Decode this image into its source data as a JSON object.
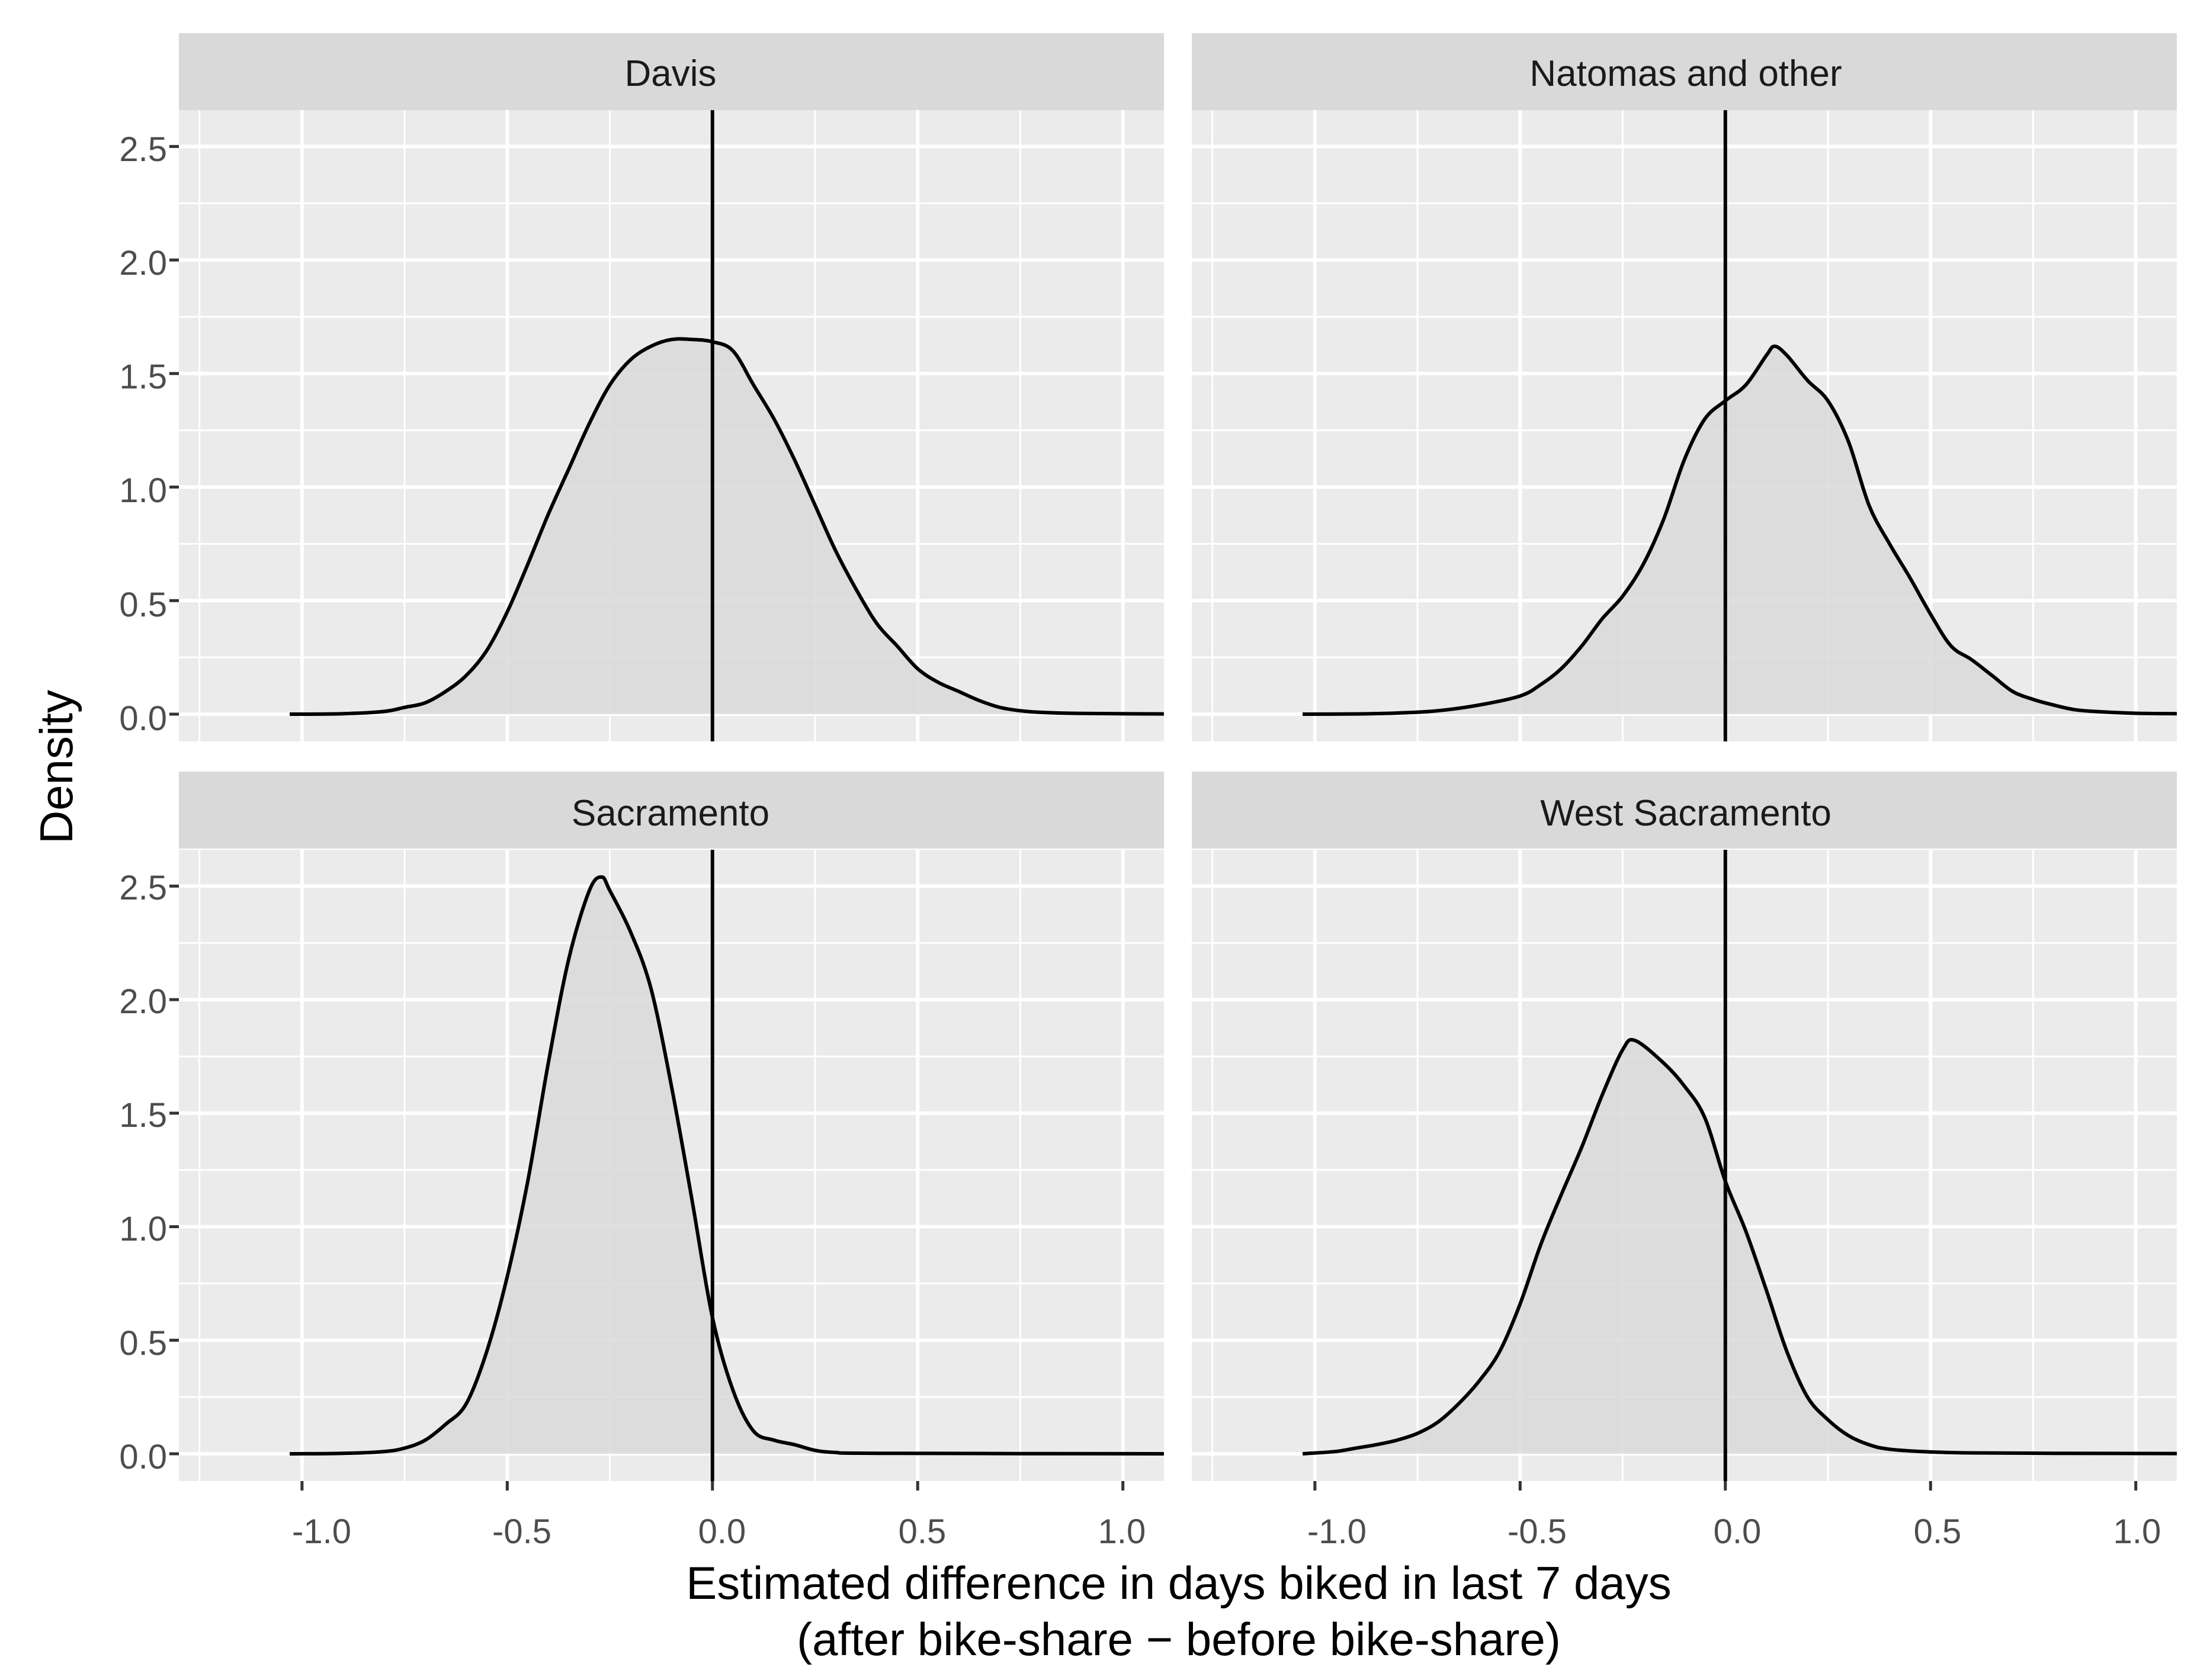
{
  "chart_data": {
    "type": "density",
    "xlabel": "Estimated difference in days biked in last 7 days",
    "xlabel_line2": "(after bike-share − before bike-share)",
    "ylabel": "Density",
    "xlim": [
      -1.3,
      1.1
    ],
    "ylim": [
      -0.12,
      2.66
    ],
    "x_ticks": [
      -1.0,
      -0.5,
      0.0,
      0.5,
      1.0
    ],
    "x_tick_labels": [
      "-1.0",
      "-0.5",
      "0.0",
      "0.5",
      "1.0"
    ],
    "y_ticks": [
      0.0,
      0.5,
      1.0,
      1.5,
      2.0,
      2.5
    ],
    "y_tick_labels": [
      "0.0",
      "0.5",
      "1.0",
      "1.5",
      "2.0",
      "2.5"
    ],
    "reference_line_x": 0.0,
    "fill_color": "#d9d9d9",
    "panel_bg": "#ebebeb",
    "strip_bg": "#d9d9d9",
    "grid_color": "#ffffff",
    "line_color": "#000000",
    "panels": [
      {
        "title": "Davis",
        "points": [
          [
            -1.03,
            0.0
          ],
          [
            -0.9,
            0.002
          ],
          [
            -0.8,
            0.012
          ],
          [
            -0.75,
            0.03
          ],
          [
            -0.7,
            0.05
          ],
          [
            -0.65,
            0.1
          ],
          [
            -0.6,
            0.17
          ],
          [
            -0.55,
            0.28
          ],
          [
            -0.5,
            0.45
          ],
          [
            -0.45,
            0.66
          ],
          [
            -0.4,
            0.88
          ],
          [
            -0.35,
            1.08
          ],
          [
            -0.3,
            1.28
          ],
          [
            -0.25,
            1.45
          ],
          [
            -0.2,
            1.56
          ],
          [
            -0.15,
            1.62
          ],
          [
            -0.1,
            1.65
          ],
          [
            -0.05,
            1.65
          ],
          [
            0.0,
            1.64
          ],
          [
            0.05,
            1.6
          ],
          [
            0.1,
            1.45
          ],
          [
            0.15,
            1.3
          ],
          [
            0.2,
            1.12
          ],
          [
            0.25,
            0.92
          ],
          [
            0.3,
            0.72
          ],
          [
            0.35,
            0.55
          ],
          [
            0.4,
            0.4
          ],
          [
            0.45,
            0.3
          ],
          [
            0.5,
            0.2
          ],
          [
            0.55,
            0.14
          ],
          [
            0.6,
            0.1
          ],
          [
            0.65,
            0.06
          ],
          [
            0.7,
            0.03
          ],
          [
            0.75,
            0.015
          ],
          [
            0.8,
            0.008
          ],
          [
            0.9,
            0.003
          ],
          [
            1.1,
            0.001
          ]
        ]
      },
      {
        "title": "Natomas and other",
        "points": [
          [
            -1.03,
            0.0
          ],
          [
            -0.9,
            0.001
          ],
          [
            -0.8,
            0.005
          ],
          [
            -0.7,
            0.015
          ],
          [
            -0.6,
            0.04
          ],
          [
            -0.5,
            0.08
          ],
          [
            -0.45,
            0.13
          ],
          [
            -0.4,
            0.2
          ],
          [
            -0.35,
            0.3
          ],
          [
            -0.3,
            0.42
          ],
          [
            -0.25,
            0.52
          ],
          [
            -0.2,
            0.66
          ],
          [
            -0.15,
            0.86
          ],
          [
            -0.1,
            1.12
          ],
          [
            -0.05,
            1.3
          ],
          [
            0.0,
            1.38
          ],
          [
            0.05,
            1.45
          ],
          [
            0.1,
            1.58
          ],
          [
            0.12,
            1.62
          ],
          [
            0.15,
            1.58
          ],
          [
            0.2,
            1.47
          ],
          [
            0.25,
            1.38
          ],
          [
            0.3,
            1.2
          ],
          [
            0.35,
            0.92
          ],
          [
            0.4,
            0.75
          ],
          [
            0.45,
            0.6
          ],
          [
            0.5,
            0.44
          ],
          [
            0.55,
            0.3
          ],
          [
            0.6,
            0.24
          ],
          [
            0.65,
            0.17
          ],
          [
            0.7,
            0.1
          ],
          [
            0.75,
            0.065
          ],
          [
            0.8,
            0.04
          ],
          [
            0.85,
            0.02
          ],
          [
            0.9,
            0.012
          ],
          [
            1.0,
            0.004
          ],
          [
            1.1,
            0.002
          ]
        ]
      },
      {
        "title": "Sacramento",
        "points": [
          [
            -1.03,
            0.0
          ],
          [
            -0.9,
            0.002
          ],
          [
            -0.8,
            0.01
          ],
          [
            -0.75,
            0.025
          ],
          [
            -0.7,
            0.06
          ],
          [
            -0.65,
            0.13
          ],
          [
            -0.6,
            0.22
          ],
          [
            -0.55,
            0.45
          ],
          [
            -0.5,
            0.78
          ],
          [
            -0.45,
            1.2
          ],
          [
            -0.4,
            1.72
          ],
          [
            -0.35,
            2.18
          ],
          [
            -0.3,
            2.48
          ],
          [
            -0.27,
            2.54
          ],
          [
            -0.25,
            2.48
          ],
          [
            -0.2,
            2.3
          ],
          [
            -0.15,
            2.05
          ],
          [
            -0.1,
            1.62
          ],
          [
            -0.05,
            1.12
          ],
          [
            0.0,
            0.6
          ],
          [
            0.05,
            0.28
          ],
          [
            0.1,
            0.1
          ],
          [
            0.15,
            0.06
          ],
          [
            0.2,
            0.04
          ],
          [
            0.25,
            0.015
          ],
          [
            0.3,
            0.006
          ],
          [
            0.4,
            0.002
          ],
          [
            1.1,
            0.0
          ]
        ]
      },
      {
        "title": "West Sacramento",
        "points": [
          [
            -1.03,
            0.0
          ],
          [
            -0.95,
            0.01
          ],
          [
            -0.9,
            0.025
          ],
          [
            -0.85,
            0.04
          ],
          [
            -0.8,
            0.06
          ],
          [
            -0.75,
            0.09
          ],
          [
            -0.7,
            0.14
          ],
          [
            -0.65,
            0.22
          ],
          [
            -0.6,
            0.32
          ],
          [
            -0.55,
            0.45
          ],
          [
            -0.5,
            0.66
          ],
          [
            -0.45,
            0.92
          ],
          [
            -0.4,
            1.14
          ],
          [
            -0.35,
            1.35
          ],
          [
            -0.3,
            1.58
          ],
          [
            -0.25,
            1.78
          ],
          [
            -0.22,
            1.82
          ],
          [
            -0.15,
            1.72
          ],
          [
            -0.1,
            1.62
          ],
          [
            -0.05,
            1.48
          ],
          [
            0.0,
            1.2
          ],
          [
            0.05,
            0.98
          ],
          [
            0.1,
            0.72
          ],
          [
            0.15,
            0.45
          ],
          [
            0.2,
            0.25
          ],
          [
            0.25,
            0.15
          ],
          [
            0.3,
            0.08
          ],
          [
            0.35,
            0.04
          ],
          [
            0.4,
            0.02
          ],
          [
            0.5,
            0.008
          ],
          [
            0.6,
            0.004
          ],
          [
            0.8,
            0.002
          ],
          [
            1.1,
            0.001
          ]
        ]
      }
    ]
  }
}
